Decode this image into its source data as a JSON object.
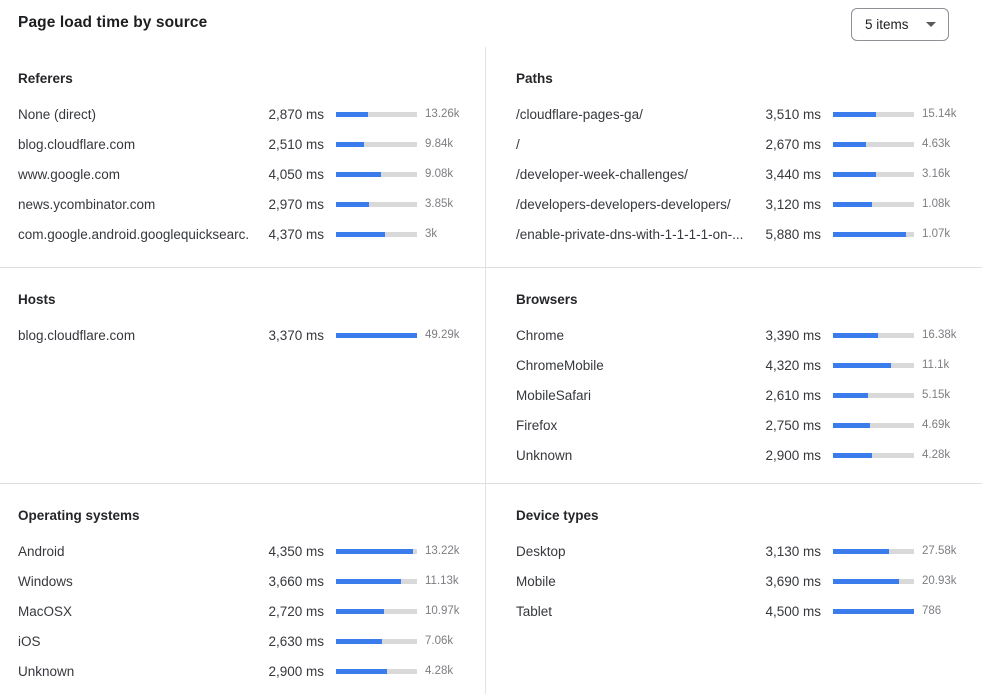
{
  "header": {
    "title": "Page load time by source",
    "items_dropdown": {
      "value": "5 items",
      "icon": "caret-down"
    }
  },
  "colors": {
    "bar_fill": "#3b7cec",
    "bar_track": "#d9d9d9",
    "divider": "#dededf",
    "text_primary": "#36383d",
    "text_secondary": "#7c7e82"
  },
  "chart_data": [
    {
      "type": "bar",
      "orientation": "horizontal",
      "title": "Referers",
      "unit": "ms",
      "rows": [
        {
          "label": "None (direct)",
          "ms": 2870,
          "ms_label": "2,870 ms",
          "count_label": "13.26k",
          "bar_pct": 39.4
        },
        {
          "label": "blog.cloudflare.com",
          "ms": 2510,
          "ms_label": "2,510 ms",
          "count_label": "9.84k",
          "bar_pct": 34.5
        },
        {
          "label": "www.google.com",
          "ms": 4050,
          "ms_label": "4,050 ms",
          "count_label": "9.08k",
          "bar_pct": 55.6
        },
        {
          "label": "news.ycombinator.com",
          "ms": 2970,
          "ms_label": "2,970 ms",
          "count_label": "3.85k",
          "bar_pct": 40.8
        },
        {
          "label": "com.google.android.googlequicksearc...",
          "ms": 4370,
          "ms_label": "4,370 ms",
          "count_label": "3k",
          "bar_pct": 60.0
        }
      ]
    },
    {
      "type": "bar",
      "orientation": "horizontal",
      "title": "Paths",
      "unit": "ms",
      "rows": [
        {
          "label": "/cloudflare-pages-ga/",
          "ms": 3510,
          "ms_label": "3,510 ms",
          "count_label": "15.14k",
          "bar_pct": 53.5
        },
        {
          "label": "/",
          "ms": 2670,
          "ms_label": "2,670 ms",
          "count_label": "4.63k",
          "bar_pct": 40.7
        },
        {
          "label": "/developer-week-challenges/",
          "ms": 3440,
          "ms_label": "3,440 ms",
          "count_label": "3.16k",
          "bar_pct": 52.5
        },
        {
          "label": "/developers-developers-developers/",
          "ms": 3120,
          "ms_label": "3,120 ms",
          "count_label": "1.08k",
          "bar_pct": 47.6
        },
        {
          "label": "/enable-private-dns-with-1-1-1-1-on-...",
          "ms": 5880,
          "ms_label": "5,880 ms",
          "count_label": "1.07k",
          "bar_pct": 89.7
        }
      ]
    },
    {
      "type": "bar",
      "orientation": "horizontal",
      "title": "Hosts",
      "unit": "ms",
      "rows": [
        {
          "label": "blog.cloudflare.com",
          "ms": 3370,
          "ms_label": "3,370 ms",
          "count_label": "49.29k",
          "bar_pct": 100
        }
      ]
    },
    {
      "type": "bar",
      "orientation": "horizontal",
      "title": "Browsers",
      "unit": "ms",
      "rows": [
        {
          "label": "Chrome",
          "ms": 3390,
          "ms_label": "3,390 ms",
          "count_label": "16.38k",
          "bar_pct": 56.1
        },
        {
          "label": "ChromeMobile",
          "ms": 4320,
          "ms_label": "4,320 ms",
          "count_label": "11.1k",
          "bar_pct": 71.5
        },
        {
          "label": "MobileSafari",
          "ms": 2610,
          "ms_label": "2,610 ms",
          "count_label": "5.15k",
          "bar_pct": 43.2
        },
        {
          "label": "Firefox",
          "ms": 2750,
          "ms_label": "2,750 ms",
          "count_label": "4.69k",
          "bar_pct": 45.5
        },
        {
          "label": "Unknown",
          "ms": 2900,
          "ms_label": "2,900 ms",
          "count_label": "4.28k",
          "bar_pct": 48.0
        }
      ]
    },
    {
      "type": "bar",
      "orientation": "horizontal",
      "title": "Operating systems",
      "unit": "ms",
      "rows": [
        {
          "label": "Android",
          "ms": 4350,
          "ms_label": "4,350 ms",
          "count_label": "13.22k",
          "bar_pct": 95.0
        },
        {
          "label": "Windows",
          "ms": 3660,
          "ms_label": "3,660 ms",
          "count_label": "11.13k",
          "bar_pct": 79.9
        },
        {
          "label": "MacOSX",
          "ms": 2720,
          "ms_label": "2,720 ms",
          "count_label": "10.97k",
          "bar_pct": 59.4
        },
        {
          "label": "iOS",
          "ms": 2630,
          "ms_label": "2,630 ms",
          "count_label": "7.06k",
          "bar_pct": 57.4
        },
        {
          "label": "Unknown",
          "ms": 2900,
          "ms_label": "2,900 ms",
          "count_label": "4.28k",
          "bar_pct": 63.3
        }
      ]
    },
    {
      "type": "bar",
      "orientation": "horizontal",
      "title": "Device types",
      "unit": "ms",
      "rows": [
        {
          "label": "Desktop",
          "ms": 3130,
          "ms_label": "3,130 ms",
          "count_label": "27.58k",
          "bar_pct": 69.6
        },
        {
          "label": "Mobile",
          "ms": 3690,
          "ms_label": "3,690 ms",
          "count_label": "20.93k",
          "bar_pct": 82.0
        },
        {
          "label": "Tablet",
          "ms": 4500,
          "ms_label": "4,500 ms",
          "count_label": "786",
          "bar_pct": 100
        }
      ]
    }
  ]
}
